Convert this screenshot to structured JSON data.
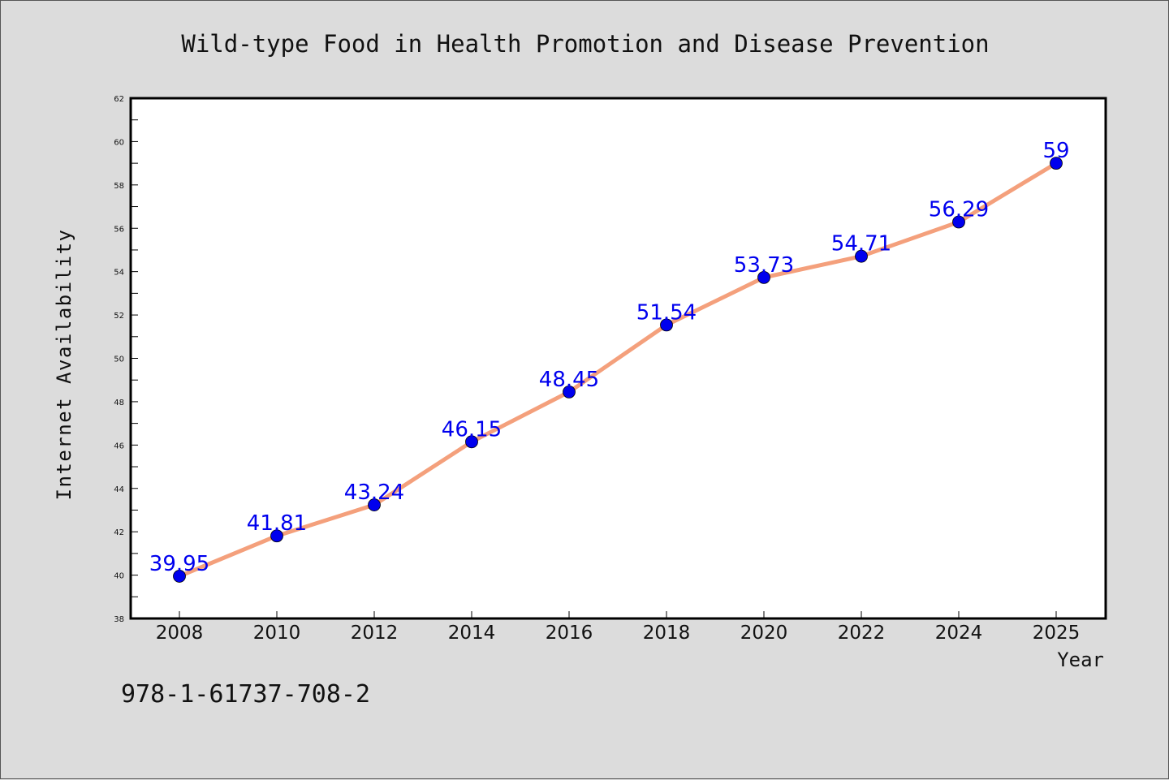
{
  "chart_data": {
    "type": "line",
    "title": "Wild-type Food in Health Promotion and Disease Prevention",
    "xlabel": "Year",
    "ylabel": "Internet Availability",
    "x": [
      "2008",
      "2010",
      "2012",
      "2014",
      "2016",
      "2018",
      "2020",
      "2022",
      "2024",
      "2025"
    ],
    "series": [
      {
        "values": [
          39.95,
          41.81,
          43.24,
          46.15,
          48.45,
          51.54,
          53.73,
          54.71,
          56.29,
          59
        ],
        "data_labels": [
          "39.95",
          "41.81",
          "43.24",
          "46.15",
          "48.45",
          "51.54",
          "53.73",
          "54.71",
          "56.29",
          "59"
        ],
        "line_color": "#f4a07c",
        "marker_color": "#0000ee",
        "label_color": "#0000ee"
      }
    ],
    "ylim": [
      38,
      62
    ],
    "yticks": [
      "38",
      "40",
      "42",
      "44",
      "46",
      "48",
      "50",
      "52",
      "54",
      "56",
      "58",
      "60",
      "62"
    ],
    "grid": false,
    "legend": "none"
  },
  "footer_text": "978-1-61737-708-2"
}
